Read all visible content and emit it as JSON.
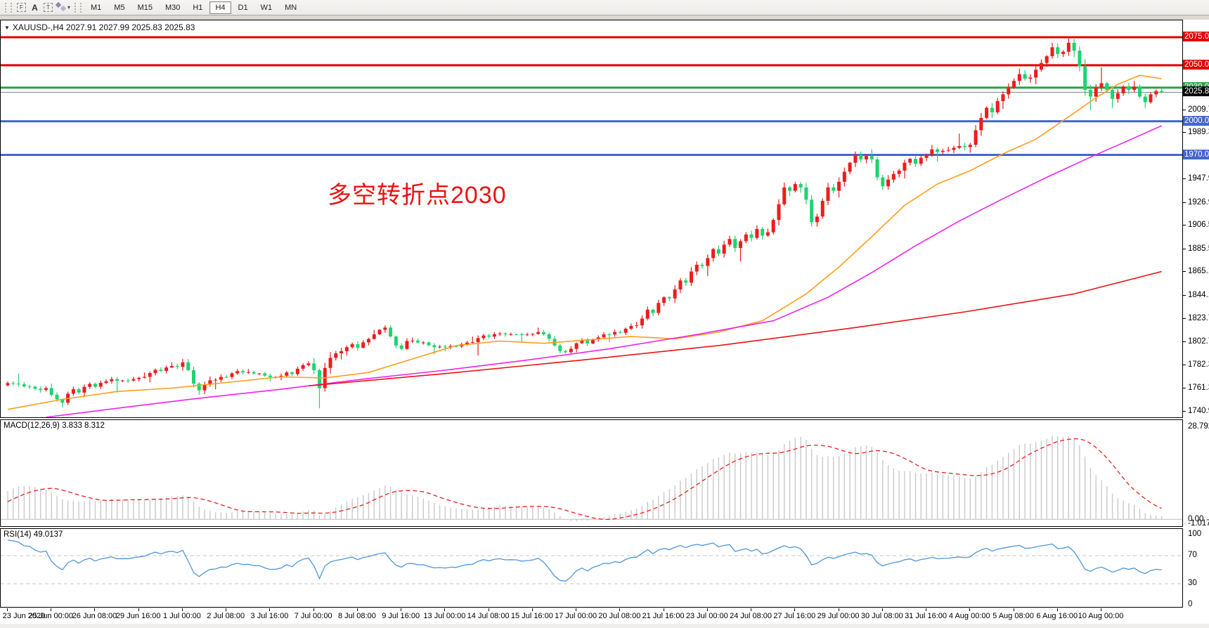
{
  "toolbar": {
    "icon_f": "F",
    "icon_a": "A",
    "icon_t": "T",
    "timeframes": [
      "M1",
      "M5",
      "M15",
      "M30",
      "H1",
      "H4",
      "D1",
      "W1",
      "MN"
    ],
    "active_timeframe": "H4"
  },
  "chart": {
    "title_marker": "▼",
    "title_line": "XAUUSD-,H4  2027.91 2027.99 2025.83 2025.83",
    "annotation": {
      "text": "多空转折点2030",
      "color": "#ee1111"
    }
  },
  "chart_data": {
    "type": "candlestick+indicators",
    "symbol": "XAUUSD-",
    "timeframe": "H4",
    "note": "H4 bars expanded from daily OHLC anchors [date,o,h,l,c,(optional 6 H4 closes)]",
    "skip_first": 4,
    "bar_x0": 10,
    "bar_dx": 7.78,
    "label_every": 8,
    "y_range": {
      "top": 2090.0,
      "bottom": 1736.0
    },
    "current_price": 2025.83,
    "current_price_label": "2025.83",
    "daily": [
      [
        "23 Jun",
        1755,
        1768,
        1753,
        1766
      ],
      [
        "24 Jun",
        1766,
        1775,
        1758,
        1762
      ],
      [
        "25 Jun",
        1762,
        1766,
        1745,
        1758,
        [
          1756,
          1752,
          1749,
          1757,
          1761,
          1758
        ]
      ],
      [
        "26 Jun",
        1758,
        1772,
        1754,
        1770
      ],
      [
        "29 Jun",
        1770,
        1776,
        1758,
        1772
      ],
      [
        "30 Jun",
        1772,
        1785,
        1767,
        1781
      ],
      [
        "1 Jul",
        1781,
        1788,
        1756,
        1769,
        [
          1785,
          1778,
          1766,
          1760,
          1765,
          1769
        ]
      ],
      [
        "2 Jul",
        1769,
        1779,
        1761,
        1776
      ],
      [
        "3 Jul",
        1776,
        1779,
        1768,
        1772
      ],
      [
        "6 Jul",
        1772,
        1786,
        1769,
        1784
      ],
      [
        "7 Jul",
        1784,
        1798,
        1744,
        1795,
        [
          1778,
          1762,
          1780,
          1789,
          1793,
          1795
        ]
      ],
      [
        "8 Jul",
        1795,
        1814,
        1791,
        1810
      ],
      [
        "9 Jul",
        1810,
        1818,
        1796,
        1804,
        [
          1814,
          1816,
          1808,
          1800,
          1797,
          1804
        ]
      ],
      [
        "10 Jul",
        1804,
        1807,
        1792,
        1799
      ],
      [
        "13 Jul",
        1799,
        1808,
        1795,
        1803
      ],
      [
        "14 Jul",
        1803,
        1812,
        1791,
        1810
      ],
      [
        "15 Jul",
        1810,
        1816,
        1803,
        1812
      ],
      [
        "16 Jul",
        1812,
        1814,
        1793,
        1797,
        [
          1810,
          1806,
          1800,
          1795,
          1794,
          1797
        ]
      ],
      [
        "17 Jul",
        1797,
        1812,
        1794,
        1810
      ],
      [
        "20 Jul",
        1810,
        1821,
        1803,
        1818
      ],
      [
        "21 Jul",
        1818,
        1844,
        1815,
        1842,
        [
          1824,
          1832,
          1829,
          1838,
          1843,
          1842
        ]
      ],
      [
        "22 Jul",
        1842,
        1875,
        1838,
        1871,
        [
          1850,
          1858,
          1856,
          1866,
          1872,
          1871
        ]
      ],
      [
        "23 Jul",
        1871,
        1898,
        1862,
        1887,
        [
          1878,
          1886,
          1882,
          1890,
          1895,
          1887
        ]
      ],
      [
        "24 Jul",
        1887,
        1907,
        1875,
        1901,
        [
          1893,
          1899,
          1896,
          1904,
          1898,
          1901
        ]
      ],
      [
        "27 Jul",
        1901,
        1946,
        1899,
        1941,
        [
          1912,
          1926,
          1941,
          1938,
          1944,
          1941
        ]
      ],
      [
        "28 Jul",
        1941,
        1945,
        1906,
        1938,
        [
          1930,
          1910,
          1915,
          1929,
          1941,
          1938
        ]
      ],
      [
        "29 Jul",
        1938,
        1973,
        1932,
        1969,
        [
          1946,
          1955,
          1963,
          1970,
          1966,
          1969
        ]
      ],
      [
        "30 Jul",
        1969,
        1975,
        1939,
        1956,
        [
          1966,
          1950,
          1942,
          1948,
          1953,
          1956
        ]
      ],
      [
        "31 Jul",
        1956,
        1979,
        1949,
        1975
      ],
      [
        "3 Aug",
        1975,
        1989,
        1964,
        1977
      ],
      [
        "4 Aug",
        1977,
        2021,
        1972,
        2018,
        [
          1979,
          1992,
          2003,
          2012,
          2008,
          2018
        ]
      ],
      [
        "5 Aug",
        2018,
        2047,
        2011,
        2039,
        [
          2024,
          2030,
          2036,
          2042,
          2038,
          2039
        ]
      ],
      [
        "6 Aug",
        2039,
        2070,
        2033,
        2062,
        [
          2046,
          2052,
          2058,
          2066,
          2060,
          2062
        ]
      ],
      [
        "7 Aug",
        2062,
        2075,
        2010,
        2030,
        [
          2070,
          2063,
          2049,
          2028,
          2022,
          2030
        ]
      ],
      [
        "10 Aug",
        2030,
        2048,
        2012,
        2028,
        [
          2034,
          2028,
          2020,
          2025,
          2031,
          2028
        ]
      ],
      [
        "11 Aug",
        2028,
        2036,
        2012,
        2025.83,
        [
          2031,
          2022,
          2017,
          2024,
          2027,
          2025.83
        ]
      ]
    ],
    "preroll_daily_closes": [
      1748,
      1727,
      1735,
      1729,
      1710,
      1712,
      1718,
      1731,
      1739,
      1727,
      1698,
      1712,
      1685,
      1698,
      1715,
      1737,
      1727,
      1731,
      1724,
      1726,
      1727,
      1722,
      1743,
      1755
    ],
    "colors": {
      "up_candle": "#ee1c1c",
      "down_candle": "#1fd36f",
      "ma_fast": "#ff9d1c",
      "ma_mid": "#ee22ee",
      "ma_slow": "#ee1111",
      "hline_red": "#e30000",
      "hline_green": "#2aa347",
      "hline_blue": "#4466cc",
      "current_line": "#808080",
      "macd_hist": "#c9c9c9",
      "macd_signal": "#e62020",
      "rsi_line": "#4d96dc",
      "level_dash": "#c6c6c6"
    },
    "hlines": [
      {
        "price": 2075,
        "label": "2075.00",
        "color": "#e30000"
      },
      {
        "price": 2050,
        "label": "2050.00",
        "color": "#e30000"
      },
      {
        "price": 2030,
        "label": "2030.00",
        "color": "#2aa347"
      },
      {
        "price": 2000,
        "label": "2000.00",
        "color": "#4466cc"
      },
      {
        "price": 1970,
        "label": "1970.00",
        "color": "#4466cc"
      }
    ],
    "price_ticks": [
      "2072.10",
      "2009.70",
      "1989.30",
      "1947.90",
      "1926.90",
      "1906.50",
      "1885.50",
      "1865.10",
      "1844.10",
      "1823.70",
      "1802.70",
      "1782.30",
      "1761.30",
      "1740.90"
    ],
    "time_labels": [
      "23 Jun 2020",
      "25 Jun 00:00",
      "26 Jun 08:00",
      "29 Jun 16:00",
      "1 Jul 00:00",
      "2 Jul 08:00",
      "3 Jul 16:00",
      "7 Jul 00:00",
      "8 Jul 08:00",
      "9 Jul 16:00",
      "13 Jul 00:00",
      "14 Jul 08:00",
      "15 Jul 16:00",
      "17 Jul 00:00",
      "20 Jul 08:00",
      "21 Jul 16:00",
      "23 Jul 00:00",
      "24 Jul 08:00",
      "27 Jul 16:00",
      "29 Jul 00:00",
      "30 Jul 08:00",
      "31 Jul 16:00",
      "4 Aug 00:00",
      "5 Aug 08:00",
      "6 Aug 16:00",
      "10 Aug 00:00"
    ],
    "ma_paths": {
      "orange": [
        [
          0,
          1743
        ],
        [
          10,
          1752
        ],
        [
          20,
          1759
        ],
        [
          30,
          1762
        ],
        [
          40,
          1767
        ],
        [
          50,
          1772
        ],
        [
          58,
          1771
        ],
        [
          66,
          1776
        ],
        [
          74,
          1788
        ],
        [
          82,
          1800
        ],
        [
          90,
          1804
        ],
        [
          98,
          1802
        ],
        [
          106,
          1805
        ],
        [
          114,
          1808
        ],
        [
          122,
          1806
        ],
        [
          130,
          1812
        ],
        [
          138,
          1822
        ],
        [
          146,
          1846
        ],
        [
          152,
          1870
        ],
        [
          158,
          1897
        ],
        [
          164,
          1925
        ],
        [
          170,
          1944
        ],
        [
          176,
          1956
        ],
        [
          182,
          1971
        ],
        [
          188,
          1984
        ],
        [
          194,
          2004
        ],
        [
          199,
          2021
        ],
        [
          203,
          2033
        ],
        [
          207,
          2041
        ],
        [
          211,
          2038
        ]
      ],
      "magenta": [
        [
          7,
          1736
        ],
        [
          20,
          1744
        ],
        [
          35,
          1753
        ],
        [
          50,
          1761
        ],
        [
          65,
          1770
        ],
        [
          80,
          1778
        ],
        [
          95,
          1787
        ],
        [
          110,
          1797
        ],
        [
          125,
          1809
        ],
        [
          140,
          1822
        ],
        [
          150,
          1843
        ],
        [
          158,
          1865
        ],
        [
          166,
          1889
        ],
        [
          174,
          1911
        ],
        [
          182,
          1931
        ],
        [
          190,
          1950
        ],
        [
          198,
          1968
        ],
        [
          205,
          1983
        ],
        [
          211,
          1996
        ]
      ],
      "red": [
        [
          55,
          1764
        ],
        [
          80,
          1775
        ],
        [
          105,
          1787
        ],
        [
          130,
          1800
        ],
        [
          155,
          1816
        ],
        [
          175,
          1830
        ],
        [
          195,
          1846
        ],
        [
          211,
          1866
        ]
      ]
    },
    "macd": {
      "label": "MACD(12,26,9) 3.833 8.312",
      "fast": 12,
      "slow": 26,
      "signal_period": 9,
      "value": 3.833,
      "signal": 8.312,
      "axis_max": "28.792",
      "axis_zero": "0.00",
      "axis_min": "-1.017",
      "range": {
        "max": 28.792,
        "min": -1.017
      }
    },
    "rsi": {
      "label": "RSI(14) 49.0137",
      "period": 14,
      "value": 49.0137,
      "levels": [
        "100",
        "70",
        "30",
        "0"
      ],
      "dashed_levels": [
        70,
        30
      ]
    }
  }
}
